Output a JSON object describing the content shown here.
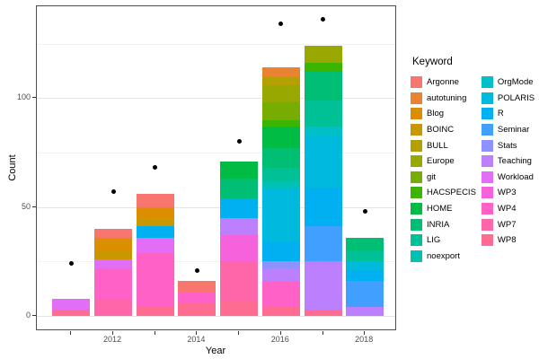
{
  "figure": {
    "xlabel": "Year",
    "ylabel": "Count",
    "legend_title": "Keyword"
  },
  "chart_data": {
    "type": "bar",
    "stacked": true,
    "title": "",
    "xlabel": "Year",
    "ylabel": "Count",
    "legend_title": "Keyword",
    "legend_position": "right",
    "grid": true,
    "x": [
      2011,
      2012,
      2013,
      2014,
      2015,
      2016,
      2017,
      2018
    ],
    "xticks_labeled": [
      2012,
      2014,
      2016,
      2018
    ],
    "yticks": [
      0,
      50,
      100
    ],
    "yticks_minor": [
      25,
      75,
      125
    ],
    "ylim": [
      0,
      142
    ],
    "stack_order_note": "first series drawn at top of stack, last at bottom",
    "series": [
      {
        "name": "Argonne",
        "color": "#F8766D",
        "values": [
          0,
          4,
          6,
          5,
          0,
          0,
          0,
          0
        ]
      },
      {
        "name": "autotuning",
        "color": "#EA8331",
        "values": [
          0,
          0,
          0,
          0,
          0,
          4,
          0,
          0
        ]
      },
      {
        "name": "Blog",
        "color": "#DB8E00",
        "values": [
          0,
          6,
          5,
          0,
          0,
          0,
          0,
          0
        ]
      },
      {
        "name": "BOINC",
        "color": "#C99800",
        "values": [
          0,
          4,
          4,
          0,
          0,
          0,
          0,
          0
        ]
      },
      {
        "name": "BULL",
        "color": "#B4A000",
        "values": [
          0,
          0,
          0,
          0,
          0,
          4,
          0,
          0
        ]
      },
      {
        "name": "Europe",
        "color": "#99A800",
        "values": [
          0,
          0,
          0,
          0,
          0,
          8,
          8,
          0
        ]
      },
      {
        "name": "git",
        "color": "#77AC00",
        "values": [
          0,
          0,
          0,
          0,
          0,
          8,
          0,
          0
        ]
      },
      {
        "name": "HACSPECIS",
        "color": "#3CB500",
        "values": [
          0,
          0,
          0,
          0,
          0,
          3,
          4,
          0
        ]
      },
      {
        "name": "HOME",
        "color": "#00BB44",
        "values": [
          0,
          0,
          0,
          0,
          8,
          10,
          0,
          0
        ]
      },
      {
        "name": "INRIA",
        "color": "#00BF74",
        "values": [
          0,
          0,
          0,
          0,
          9,
          9,
          13,
          6
        ]
      },
      {
        "name": "LIG",
        "color": "#00C196",
        "values": [
          0,
          0,
          0,
          0,
          0,
          6,
          12,
          5
        ]
      },
      {
        "name": "noexport",
        "color": "#00C1B2",
        "values": [
          0,
          0,
          0,
          0,
          0,
          3,
          0,
          0
        ]
      },
      {
        "name": "OrgMode",
        "color": "#00BFC8",
        "values": [
          0,
          0,
          0,
          0,
          0,
          0,
          4,
          0
        ]
      },
      {
        "name": "POLARIS",
        "color": "#00BADE",
        "values": [
          0,
          0,
          0,
          0,
          0,
          25,
          24,
          4
        ]
      },
      {
        "name": "R",
        "color": "#00B0F1",
        "values": [
          0,
          0,
          5,
          0,
          9,
          9,
          18,
          5
        ]
      },
      {
        "name": "Seminar",
        "color": "#41A0FF",
        "values": [
          0,
          0,
          0,
          0,
          0,
          0,
          16,
          12
        ]
      },
      {
        "name": "Stats",
        "color": "#8F91FF",
        "values": [
          0,
          0,
          0,
          0,
          0,
          3,
          0,
          0
        ]
      },
      {
        "name": "Teaching",
        "color": "#BC80FF",
        "values": [
          0,
          0,
          0,
          0,
          8,
          6,
          22,
          4
        ]
      },
      {
        "name": "Workload",
        "color": "#E26EF7",
        "values": [
          5,
          4,
          7,
          0,
          0,
          0,
          0,
          0
        ]
      },
      {
        "name": "WP3",
        "color": "#F562DC",
        "values": [
          0,
          0,
          0,
          0,
          12,
          0,
          0,
          0
        ]
      },
      {
        "name": "WP4",
        "color": "#FF61C7",
        "values": [
          0,
          14,
          25,
          5,
          0,
          12,
          0,
          0
        ]
      },
      {
        "name": "WP7",
        "color": "#FF66A9",
        "values": [
          0,
          8,
          0,
          0,
          18,
          0,
          0,
          0
        ]
      },
      {
        "name": "WP8",
        "color": "#FF6C92",
        "values": [
          3,
          0,
          4,
          6,
          7,
          4,
          3,
          0
        ]
      }
    ],
    "bar_totals": [
      8,
      40,
      56,
      16,
      71,
      114,
      124,
      36
    ],
    "points": {
      "name": "total-dots",
      "color": "#000000",
      "values": [
        24,
        57,
        68,
        21,
        80,
        134,
        136,
        48
      ]
    },
    "legend_column_split": 12
  }
}
